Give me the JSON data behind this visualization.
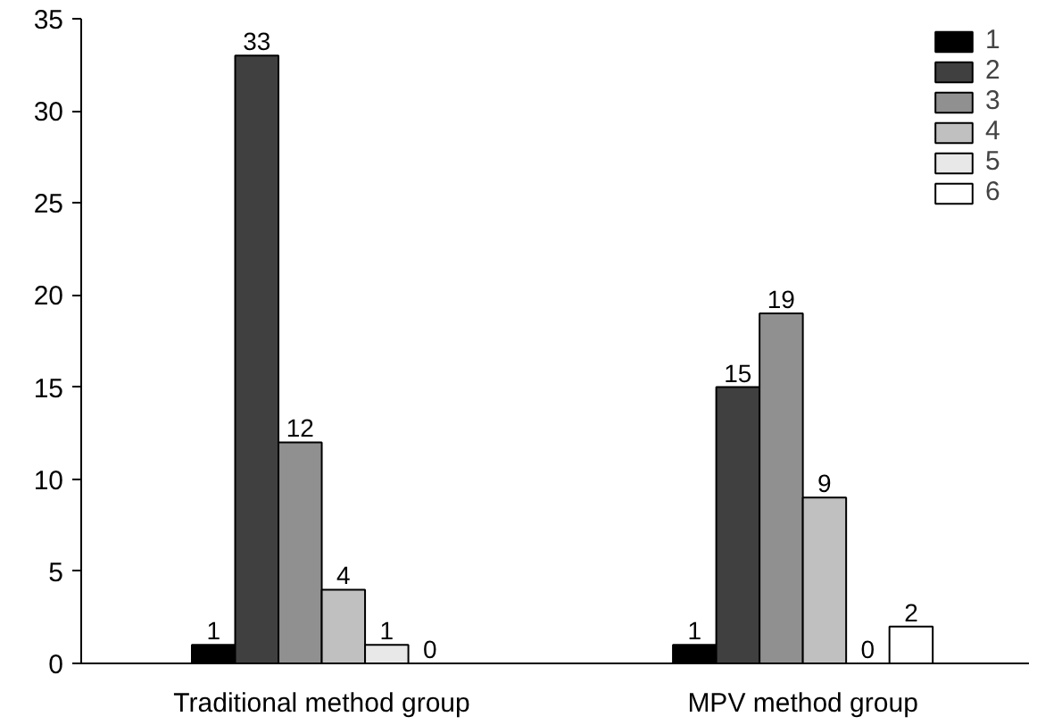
{
  "chart_data": {
    "type": "bar",
    "categories": [
      "Traditional method group",
      "MPV method group"
    ],
    "series": [
      {
        "name": "1",
        "color": "#000000",
        "values": [
          1,
          1
        ]
      },
      {
        "name": "2",
        "color": "#404040",
        "values": [
          33,
          15
        ]
      },
      {
        "name": "3",
        "color": "#909090",
        "values": [
          12,
          19
        ]
      },
      {
        "name": "4",
        "color": "#c0c0c0",
        "values": [
          4,
          9
        ]
      },
      {
        "name": "5",
        "color": "#e8e8e8",
        "values": [
          1,
          0
        ]
      },
      {
        "name": "6",
        "color": "#ffffff",
        "values": [
          0,
          2
        ]
      }
    ],
    "ylim": [
      0,
      35
    ],
    "yticks": [
      0,
      5,
      10,
      15,
      20,
      25,
      30,
      35
    ],
    "grid": false,
    "legend": "top right",
    "data_labels": true
  }
}
